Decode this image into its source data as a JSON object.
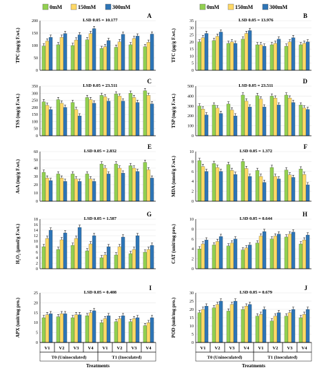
{
  "colors": {
    "s0mM": "#92d050",
    "s150mM": "#ffd966",
    "s300mM": "#2e75b6"
  },
  "legend": [
    "0mM",
    "150mM",
    "300mM"
  ],
  "chart_data": [
    {
      "letter": "A",
      "type": "bar",
      "lsd": "LSD 0.05 = 10.177",
      "ylabel": "TPC (mg/g F.wt.)",
      "yticks": [
        0,
        50,
        100,
        150,
        200
      ],
      "ylim": [
        0,
        200
      ],
      "series": [
        {
          "name": "0mM",
          "values": [
            98,
            103,
            100,
            123,
            88,
            93,
            103,
            95
          ]
        },
        {
          "name": "150mM",
          "values": [
            118,
            133,
            122,
            148,
            95,
            115,
            128,
            113
          ]
        },
        {
          "name": "300mM",
          "values": [
            133,
            148,
            143,
            168,
            120,
            145,
            138,
            146
          ]
        }
      ],
      "categories": [
        "V1",
        "V2",
        "V3",
        "V4",
        "V1",
        "V2",
        "V3",
        "V4"
      ]
    },
    {
      "letter": "B",
      "type": "bar",
      "lsd": "LSD 0.05 = 13.976",
      "ylabel": "TFC (µg/g F.wt.)",
      "yticks": [
        0,
        5,
        10,
        15,
        20,
        25,
        30,
        35
      ],
      "ylim": [
        0,
        35
      ],
      "series": [
        {
          "name": "0mM",
          "values": [
            20,
            21,
            19,
            22,
            18,
            18,
            17,
            18
          ]
        },
        {
          "name": "150mM",
          "values": [
            23,
            24,
            20,
            26,
            18,
            19,
            20,
            19
          ]
        },
        {
          "name": "300mM",
          "values": [
            26,
            27,
            19,
            28,
            17,
            22,
            23,
            20
          ]
        }
      ],
      "categories": [
        "V1",
        "V2",
        "V3",
        "V4",
        "V1",
        "V2",
        "V3",
        "V4"
      ]
    },
    {
      "letter": "C",
      "type": "bar",
      "lsd": "LSD 0.05 = 23.511",
      "ylabel": "TSS (mg/g F.wt.)",
      "yticks": [
        0,
        50,
        100,
        150,
        200,
        250,
        300,
        350
      ],
      "ylim": [
        0,
        350
      ],
      "series": [
        {
          "name": "0mM",
          "values": [
            240,
            255,
            235,
            270,
            285,
            295,
            300,
            318
          ]
        },
        {
          "name": "150mM",
          "values": [
            215,
            230,
            185,
            255,
            275,
            280,
            270,
            285
          ]
        },
        {
          "name": "300mM",
          "values": [
            185,
            200,
            140,
            230,
            245,
            245,
            235,
            225
          ]
        }
      ],
      "categories": [
        "V1",
        "V2",
        "V3",
        "V4",
        "V1",
        "V2",
        "V3",
        "V4"
      ]
    },
    {
      "letter": "D",
      "type": "bar",
      "lsd": "LSD 0.05 = 23.511",
      "ylabel": "TSP (mg/g F.wt.)",
      "yticks": [
        0,
        100,
        200,
        300,
        400,
        500
      ],
      "ylim": [
        0,
        500
      ],
      "series": [
        {
          "name": "0mM",
          "values": [
            300,
            310,
            320,
            410,
            405,
            400,
            410,
            310
          ]
        },
        {
          "name": "150mM",
          "values": [
            270,
            280,
            260,
            350,
            370,
            380,
            380,
            280
          ]
        },
        {
          "name": "300mM",
          "values": [
            210,
            225,
            200,
            290,
            290,
            310,
            335,
            265
          ]
        }
      ],
      "categories": [
        "V1",
        "V2",
        "V3",
        "V4",
        "V1",
        "V2",
        "V3",
        "V4"
      ]
    },
    {
      "letter": "E",
      "type": "bar",
      "lsd": "LSD 0.05 = 2.832",
      "ylabel": "AsA (mg/g F.wt.)",
      "yticks": [
        0,
        10,
        20,
        30,
        40,
        50,
        60
      ],
      "ylim": [
        0,
        60
      ],
      "series": [
        {
          "name": "0mM",
          "values": [
            35,
            33,
            33,
            33,
            45,
            45,
            43,
            47
          ]
        },
        {
          "name": "150mM",
          "values": [
            28,
            28,
            27,
            27,
            40,
            40,
            40,
            38
          ]
        },
        {
          "name": "300mM",
          "values": [
            25,
            24,
            24,
            24,
            33,
            34,
            36,
            28
          ]
        }
      ],
      "categories": [
        "V1",
        "V2",
        "V3",
        "V4",
        "V1",
        "V2",
        "V3",
        "V4"
      ]
    },
    {
      "letter": "F",
      "type": "bar",
      "lsd": "LSD 0.05 = 1.372",
      "ylabel": "MDA (nmol/g F.wt.)",
      "yticks": [
        0,
        2,
        4,
        6,
        8,
        10
      ],
      "ylim": [
        0,
        10
      ],
      "series": [
        {
          "name": "0mM",
          "values": [
            8.2,
            7.6,
            7.4,
            8.0,
            6.2,
            6.8,
            6.3,
            6.5
          ]
        },
        {
          "name": "150mM",
          "values": [
            7.0,
            6.8,
            6.2,
            6.6,
            5.0,
            5.0,
            5.3,
            5.4
          ]
        },
        {
          "name": "300mM",
          "values": [
            6.0,
            6.0,
            5.4,
            5.0,
            3.8,
            4.5,
            4.8,
            3.3
          ]
        }
      ],
      "categories": [
        "V1",
        "V2",
        "V3",
        "V4",
        "V1",
        "V2",
        "V3",
        "V4"
      ]
    },
    {
      "letter": "G",
      "type": "bar",
      "lsd": "LSD 0.05 = 1.587",
      "ylabel": "H₂O₂ (µmol/g F.wt.)",
      "yticks": [
        0,
        2,
        4,
        6,
        8,
        10,
        12,
        14,
        16,
        18
      ],
      "ylim": [
        0,
        18
      ],
      "series": [
        {
          "name": "0mM",
          "values": [
            8,
            7,
            8.5,
            6.5,
            4,
            5,
            5.5,
            6
          ]
        },
        {
          "name": "150mM",
          "values": [
            11,
            10.5,
            11,
            9,
            5,
            8,
            7,
            7
          ]
        },
        {
          "name": "300mM",
          "values": [
            14,
            13,
            15,
            12,
            8,
            11.5,
            12,
            8.5
          ]
        }
      ],
      "categories": [
        "V1",
        "V2",
        "V3",
        "V4",
        "V1",
        "V2",
        "V3",
        "V4"
      ]
    },
    {
      "letter": "H",
      "type": "bar",
      "lsd": "LSD 0.05 = 0.644",
      "ylabel": "CAT (unit/mg pro.)",
      "yticks": [
        0,
        2,
        4,
        6,
        8,
        10
      ],
      "ylim": [
        0,
        10
      ],
      "series": [
        {
          "name": "0mM",
          "values": [
            4.0,
            4.8,
            4.6,
            3.8,
            5.2,
            6.0,
            6.4,
            5.0
          ]
        },
        {
          "name": "150mM",
          "values": [
            5.0,
            5.5,
            5.2,
            4.2,
            6.6,
            6.6,
            7.0,
            5.8
          ]
        },
        {
          "name": "300mM",
          "values": [
            5.8,
            6.5,
            6.0,
            4.8,
            7.5,
            7.0,
            7.4,
            6.8
          ]
        }
      ],
      "categories": [
        "V1",
        "V2",
        "V3",
        "V4",
        "V1",
        "V2",
        "V3",
        "V4"
      ]
    },
    {
      "letter": "I",
      "type": "bar",
      "lsd": "LSD 0.05 = 0.408",
      "ylabel": "APX (unit/mg pro.)",
      "yticks": [
        0,
        5,
        10,
        15,
        20,
        25
      ],
      "ylim": [
        0,
        25
      ],
      "series": [
        {
          "name": "0mM",
          "values": [
            12.5,
            13,
            12.5,
            13.5,
            10,
            10.5,
            10.5,
            8.5
          ]
        },
        {
          "name": "150mM",
          "values": [
            14,
            14.5,
            14,
            15,
            12,
            12,
            12,
            10
          ]
        },
        {
          "name": "300mM",
          "values": [
            14.5,
            14.5,
            14,
            16,
            13.5,
            13.5,
            12.5,
            12.5
          ]
        }
      ],
      "categories": [
        "V1",
        "V2",
        "V3",
        "V4",
        "V1",
        "V2",
        "V3",
        "V4"
      ]
    },
    {
      "letter": "J",
      "type": "bar",
      "lsd": "LSD 0.05 = 0.679",
      "ylabel": "POD (unit/mg pro.)",
      "yticks": [
        0,
        5,
        10,
        15,
        20,
        25,
        30
      ],
      "ylim": [
        0,
        30
      ],
      "series": [
        {
          "name": "0mM",
          "values": [
            18,
            21,
            19,
            20,
            16,
            13,
            16,
            15
          ]
        },
        {
          "name": "150mM",
          "values": [
            20,
            23,
            23,
            22,
            17,
            16,
            18,
            17
          ]
        },
        {
          "name": "300mM",
          "values": [
            22,
            25,
            25,
            23,
            20,
            18,
            20,
            20
          ]
        }
      ],
      "categories": [
        "V1",
        "V2",
        "V3",
        "V4",
        "V1",
        "V2",
        "V3",
        "V4"
      ]
    }
  ],
  "x_groups": [
    "T0 (Uninoculated)",
    "T1 (Inoculated)"
  ],
  "x_title": "Treatments"
}
